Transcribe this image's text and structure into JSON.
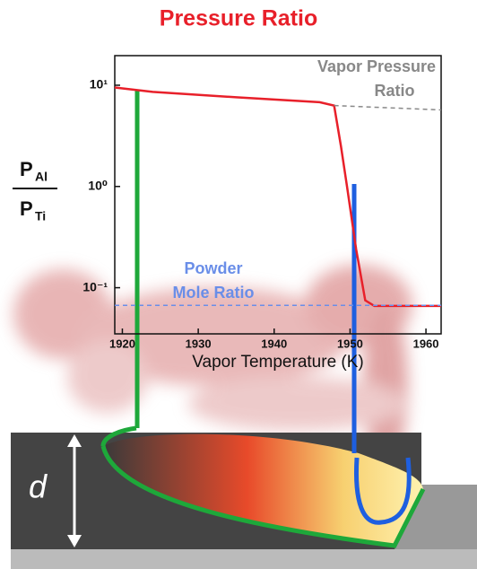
{
  "chart_data": {
    "type": "line",
    "title": "Pressure Ratio",
    "x_label": "Vapor Temperature (K)",
    "y_label": {
      "numerator": {
        "symbol": "P",
        "subscript": "Al"
      },
      "denominator": {
        "symbol": "P",
        "subscript": "Ti"
      }
    },
    "xlim": [
      1919,
      1962
    ],
    "xticks": [
      1920,
      1930,
      1940,
      1950,
      1960
    ],
    "ylim": [
      0.035,
      19.6
    ],
    "log_y": true,
    "yticks": [
      {
        "value": 10,
        "label": "10¹"
      },
      {
        "value": 1,
        "label": "10⁰"
      },
      {
        "value": 0.1,
        "label": "10⁻¹"
      }
    ],
    "series": [
      {
        "color": "#e8202a",
        "dash": false,
        "x": [
          1919,
          1924,
          1935,
          1946,
          1947.9,
          1948.8,
          1949.6,
          1950.8,
          1952,
          1953.2,
          1962
        ],
        "values": [
          9.5,
          8.6,
          7.6,
          6.8,
          6.3,
          2.5,
          1.0,
          0.24,
          0.075,
          0.066,
          0.066
        ]
      },
      {
        "color": "#888888",
        "dash": true,
        "x": [
          1947.9,
          1962
        ],
        "values": [
          6.3,
          5.7
        ]
      },
      {
        "color": "#6a8ee8",
        "dash": true,
        "x": [
          1919,
          1962
        ],
        "values": [
          0.067,
          0.067
        ]
      }
    ],
    "annotations": [
      {
        "lines": [
          "Vapor Pressure",
          "Ratio"
        ],
        "color": "#888888"
      },
      {
        "lines": [
          "Powder",
          "Mole Ratio"
        ],
        "color": "#6a8ee8"
      }
    ]
  },
  "illustration": {
    "depth_label": "d"
  }
}
